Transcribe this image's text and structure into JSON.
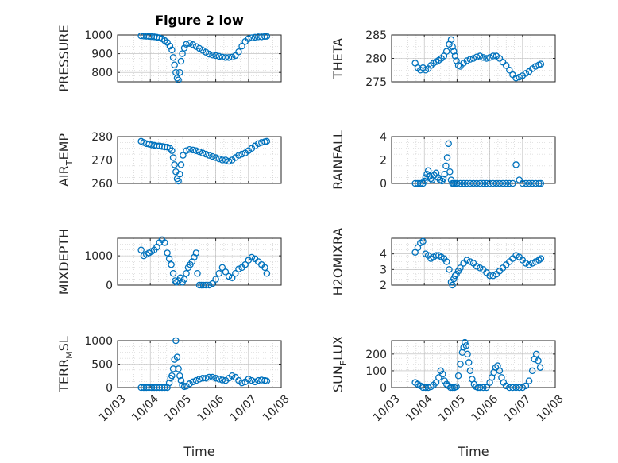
{
  "figure": {
    "title": "Figure 2 low",
    "marker_color": "#0072BD",
    "grid_color": "#c8c8c8",
    "axis_color": "#262626"
  },
  "chart_data": [
    {
      "type": "scatter",
      "ylabel": "PRESSURE",
      "ylabel_sub": "",
      "ylabel_tail": "",
      "title": "Figure 2 low",
      "xlabel": "",
      "xlim": [
        "10/03",
        "10/08"
      ],
      "ylim": [
        750,
        1000
      ],
      "yticks": [
        800,
        900,
        1000
      ],
      "xticks": [],
      "grid": true,
      "x": [
        0.72,
        0.8,
        0.88,
        0.96,
        1.04,
        1.12,
        1.2,
        1.28,
        1.36,
        1.44,
        1.52,
        1.6,
        1.66,
        1.7,
        1.74,
        1.78,
        1.82,
        1.86,
        1.9,
        1.94,
        1.98,
        2.04,
        2.1,
        2.2,
        2.3,
        2.4,
        2.5,
        2.6,
        2.7,
        2.8,
        2.9,
        3.0,
        3.1,
        3.2,
        3.3,
        3.4,
        3.5,
        3.6,
        3.7,
        3.8,
        3.9,
        4.0,
        4.1,
        4.2,
        4.3,
        4.4,
        4.5,
        4.56
      ],
      "y": [
        995,
        994,
        993,
        992,
        991,
        990,
        988,
        985,
        980,
        970,
        960,
        940,
        920,
        880,
        840,
        800,
        770,
        760,
        800,
        860,
        900,
        930,
        950,
        955,
        948,
        938,
        928,
        918,
        908,
        898,
        893,
        890,
        886,
        882,
        880,
        880,
        882,
        890,
        910,
        940,
        965,
        980,
        985,
        988,
        990,
        990,
        992,
        993
      ]
    },
    {
      "type": "scatter",
      "ylabel": "THETA",
      "ylabel_sub": "",
      "ylabel_tail": "",
      "xlim": [
        "10/03",
        "10/08"
      ],
      "ylim": [
        275,
        285
      ],
      "yticks": [
        275,
        280,
        285
      ],
      "grid": true,
      "x": [
        0.72,
        0.8,
        0.88,
        0.96,
        1.04,
        1.12,
        1.2,
        1.28,
        1.36,
        1.44,
        1.52,
        1.6,
        1.68,
        1.76,
        1.82,
        1.86,
        1.9,
        1.94,
        1.98,
        2.04,
        2.1,
        2.2,
        2.3,
        2.4,
        2.5,
        2.6,
        2.7,
        2.8,
        2.9,
        3.0,
        3.1,
        3.2,
        3.3,
        3.4,
        3.5,
        3.6,
        3.7,
        3.8,
        3.9,
        4.0,
        4.1,
        4.2,
        4.3,
        4.4,
        4.5,
        4.56
      ],
      "y": [
        279,
        278,
        277.5,
        278,
        277.5,
        277.8,
        278.5,
        279,
        279.3,
        279.6,
        280,
        280.5,
        281.5,
        283,
        284,
        282.5,
        281.5,
        280.5,
        279.5,
        278.5,
        278.3,
        279,
        279.5,
        279.8,
        280,
        280.3,
        280.5,
        280.2,
        280,
        280.2,
        280.5,
        280.5,
        280,
        279.2,
        278.5,
        277.5,
        276.5,
        275.8,
        276,
        276.3,
        276.8,
        277.2,
        277.8,
        278.3,
        278.6,
        278.8
      ]
    },
    {
      "type": "scatter",
      "ylabel": "AIR",
      "ylabel_sub": "T",
      "ylabel_tail": "EMP",
      "xlim": [
        "10/03",
        "10/08"
      ],
      "ylim": [
        260,
        280
      ],
      "yticks": [
        260,
        270,
        280
      ],
      "grid": true,
      "x": [
        0.72,
        0.8,
        0.88,
        0.96,
        1.04,
        1.12,
        1.2,
        1.28,
        1.36,
        1.44,
        1.52,
        1.6,
        1.66,
        1.7,
        1.74,
        1.78,
        1.82,
        1.86,
        1.9,
        1.94,
        2.0,
        2.1,
        2.2,
        2.3,
        2.4,
        2.5,
        2.6,
        2.7,
        2.8,
        2.9,
        3.0,
        3.1,
        3.2,
        3.3,
        3.4,
        3.5,
        3.6,
        3.7,
        3.8,
        3.9,
        4.0,
        4.1,
        4.2,
        4.3,
        4.4,
        4.5,
        4.56
      ],
      "y": [
        278,
        277.5,
        277,
        276.8,
        276.5,
        276.3,
        276,
        276,
        275.8,
        275.6,
        275.5,
        275,
        274,
        271,
        268,
        265,
        262,
        261,
        264,
        268,
        272,
        274,
        274.5,
        274.3,
        274,
        273.5,
        273,
        272.5,
        272,
        271.5,
        271,
        270.5,
        270,
        270,
        269.5,
        270,
        271,
        272,
        272.5,
        273,
        274,
        275,
        276,
        277,
        277.5,
        277.8,
        278
      ]
    },
    {
      "type": "scatter",
      "ylabel": "RAINFALL",
      "ylabel_sub": "",
      "ylabel_tail": "",
      "xlim": [
        "10/03",
        "10/08"
      ],
      "ylim": [
        0,
        4
      ],
      "yticks": [
        0,
        2,
        4
      ],
      "grid": true,
      "x": [
        0.72,
        0.8,
        0.88,
        0.96,
        1.0,
        1.04,
        1.08,
        1.12,
        1.16,
        1.2,
        1.24,
        1.3,
        1.36,
        1.42,
        1.48,
        1.54,
        1.58,
        1.62,
        1.66,
        1.7,
        1.74,
        1.78,
        1.82,
        1.86,
        1.9,
        1.95,
        2.0,
        2.1,
        2.2,
        2.3,
        2.4,
        2.5,
        2.6,
        2.7,
        2.8,
        2.9,
        3.0,
        3.1,
        3.2,
        3.3,
        3.4,
        3.5,
        3.6,
        3.7,
        3.8,
        3.9,
        4.0,
        4.1,
        4.2,
        4.3,
        4.4,
        4.5,
        4.56
      ],
      "y": [
        0,
        0,
        0,
        0,
        0.2,
        0.5,
        0.8,
        1.1,
        0.6,
        0.4,
        0.3,
        0.7,
        0.9,
        0.5,
        0.3,
        0.2,
        0.4,
        0.8,
        1.5,
        2.2,
        3.4,
        1.0,
        0.3,
        0,
        0,
        0,
        0,
        0,
        0,
        0,
        0,
        0,
        0,
        0,
        0,
        0,
        0,
        0,
        0,
        0,
        0,
        0,
        0,
        0,
        1.6,
        0.3,
        0,
        0,
        0,
        0,
        0,
        0,
        0
      ]
    },
    {
      "type": "scatter",
      "ylabel": "MIXDEPTH",
      "ylabel_sub": "",
      "ylabel_tail": "",
      "xlim": [
        "10/03",
        "10/08"
      ],
      "ylim": [
        0,
        1600
      ],
      "yticks": [
        0,
        1000
      ],
      "grid": true,
      "x": [
        0.72,
        0.8,
        0.88,
        0.96,
        1.04,
        1.12,
        1.2,
        1.28,
        1.36,
        1.44,
        1.52,
        1.58,
        1.64,
        1.7,
        1.76,
        1.8,
        1.86,
        1.92,
        1.98,
        2.04,
        2.1,
        2.16,
        2.22,
        2.28,
        2.34,
        2.4,
        2.44,
        2.5,
        2.56,
        2.62,
        2.7,
        2.8,
        2.9,
        3.0,
        3.1,
        3.2,
        3.3,
        3.4,
        3.5,
        3.6,
        3.7,
        3.8,
        3.9,
        4.0,
        4.1,
        4.2,
        4.3,
        4.4,
        4.5,
        4.56
      ],
      "y": [
        1200,
        1000,
        1050,
        1100,
        1150,
        1200,
        1300,
        1450,
        1550,
        1450,
        1100,
        900,
        700,
        400,
        150,
        100,
        150,
        250,
        100,
        200,
        400,
        600,
        700,
        800,
        950,
        1100,
        400,
        0,
        0,
        0,
        0,
        0,
        50,
        200,
        400,
        600,
        450,
        300,
        250,
        400,
        550,
        600,
        700,
        850,
        950,
        900,
        800,
        700,
        600,
        400
      ]
    },
    {
      "type": "scatter",
      "ylabel": "H2OMIXRA",
      "ylabel_sub": "",
      "ylabel_tail": "",
      "xlim": [
        "10/03",
        "10/08"
      ],
      "ylim": [
        2,
        5
      ],
      "yticks": [
        2,
        3,
        4
      ],
      "grid": true,
      "x": [
        0.72,
        0.8,
        0.88,
        0.96,
        1.04,
        1.12,
        1.2,
        1.28,
        1.36,
        1.44,
        1.52,
        1.6,
        1.68,
        1.76,
        1.82,
        1.86,
        1.9,
        1.94,
        1.98,
        2.04,
        2.1,
        2.2,
        2.3,
        2.4,
        2.5,
        2.6,
        2.7,
        2.8,
        2.9,
        3.0,
        3.1,
        3.2,
        3.3,
        3.4,
        3.5,
        3.6,
        3.7,
        3.8,
        3.9,
        4.0,
        4.1,
        4.2,
        4.3,
        4.4,
        4.5,
        4.56
      ],
      "y": [
        4.1,
        4.4,
        4.7,
        4.8,
        4.0,
        3.9,
        3.7,
        3.8,
        3.9,
        3.9,
        3.8,
        3.7,
        3.5,
        3.0,
        2.2,
        2.0,
        2.4,
        2.6,
        2.7,
        2.9,
        3.1,
        3.4,
        3.6,
        3.5,
        3.4,
        3.2,
        3.1,
        3.0,
        2.8,
        2.6,
        2.6,
        2.7,
        2.9,
        3.1,
        3.3,
        3.5,
        3.7,
        3.9,
        3.8,
        3.6,
        3.4,
        3.3,
        3.4,
        3.5,
        3.6,
        3.7
      ]
    },
    {
      "type": "scatter",
      "ylabel": "TERR",
      "ylabel_sub": "M",
      "ylabel_tail": "SL",
      "xlabel": "Time",
      "xlim": [
        "10/03",
        "10/08"
      ],
      "ylim": [
        0,
        1000
      ],
      "yticks": [
        0,
        500,
        1000
      ],
      "xticks": [
        "10/03",
        "10/04",
        "10/05",
        "10/06",
        "10/07",
        "10/08"
      ],
      "grid": true,
      "x": [
        0.72,
        0.8,
        0.88,
        0.96,
        1.04,
        1.12,
        1.2,
        1.28,
        1.36,
        1.44,
        1.52,
        1.58,
        1.62,
        1.66,
        1.7,
        1.74,
        1.78,
        1.82,
        1.86,
        1.9,
        1.94,
        1.98,
        2.04,
        2.1,
        2.2,
        2.3,
        2.4,
        2.5,
        2.6,
        2.7,
        2.8,
        2.9,
        3.0,
        3.1,
        3.2,
        3.3,
        3.4,
        3.5,
        3.6,
        3.7,
        3.8,
        3.9,
        4.0,
        4.1,
        4.2,
        4.3,
        4.4,
        4.5,
        4.56
      ],
      "y": [
        0,
        0,
        0,
        0,
        0,
        0,
        0,
        0,
        0,
        0,
        0,
        100,
        200,
        250,
        400,
        600,
        1000,
        650,
        400,
        250,
        150,
        50,
        20,
        30,
        80,
        120,
        150,
        180,
        200,
        200,
        220,
        220,
        200,
        180,
        160,
        150,
        200,
        250,
        220,
        150,
        100,
        120,
        180,
        150,
        120,
        150,
        160,
        150,
        140
      ]
    },
    {
      "type": "scatter",
      "ylabel": "SUN",
      "ylabel_sub": "F",
      "ylabel_tail": "LUX",
      "xlabel": "Time",
      "xlim": [
        "10/03",
        "10/08"
      ],
      "ylim": [
        0,
        280
      ],
      "yticks": [
        0,
        100,
        200
      ],
      "xticks": [
        "10/03",
        "10/04",
        "10/05",
        "10/06",
        "10/07",
        "10/08"
      ],
      "grid": true,
      "x": [
        0.72,
        0.8,
        0.88,
        0.96,
        1.04,
        1.12,
        1.2,
        1.28,
        1.36,
        1.44,
        1.5,
        1.56,
        1.62,
        1.68,
        1.74,
        1.8,
        1.86,
        1.92,
        1.98,
        2.04,
        2.1,
        2.16,
        2.2,
        2.24,
        2.28,
        2.32,
        2.36,
        2.4,
        2.46,
        2.52,
        2.58,
        2.64,
        2.7,
        2.8,
        2.9,
        3.0,
        3.06,
        3.12,
        3.18,
        3.24,
        3.3,
        3.36,
        3.42,
        3.5,
        3.6,
        3.7,
        3.8,
        3.9,
        4.0,
        4.1,
        4.2,
        4.3,
        4.36,
        4.42,
        4.48,
        4.54
      ],
      "y": [
        30,
        20,
        10,
        0,
        0,
        0,
        5,
        15,
        30,
        60,
        100,
        80,
        40,
        20,
        10,
        0,
        0,
        0,
        5,
        70,
        140,
        210,
        240,
        270,
        250,
        200,
        150,
        100,
        50,
        20,
        5,
        0,
        0,
        0,
        0,
        30,
        60,
        90,
        120,
        130,
        100,
        60,
        30,
        10,
        0,
        0,
        0,
        0,
        0,
        10,
        40,
        100,
        170,
        200,
        160,
        120
      ]
    }
  ]
}
